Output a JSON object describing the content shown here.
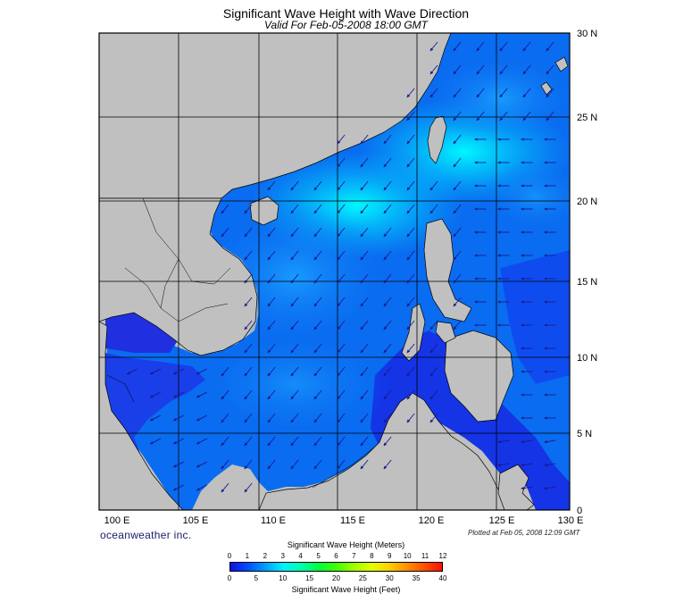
{
  "title": "Significant Wave Height with Wave Direction",
  "subtitle": "Valid For Feb-05-2008 18:00 GMT",
  "brand": "oceanweather inc.",
  "plotted_at": "Plotted at Feb 05, 2008 12:09 GMT",
  "map": {
    "lon_labels": [
      "100 E",
      "105 E",
      "110 E",
      "115 E",
      "120 E",
      "125 E",
      "130 E"
    ],
    "lat_labels": [
      "30 N",
      "25 N",
      "20 N",
      "15 N",
      "10 N",
      "5 N",
      "0"
    ],
    "lon_range": [
      100,
      130
    ],
    "lat_range": [
      0,
      30
    ],
    "land_color": "#c0c0c0",
    "arrow_color": "#1a1a8c"
  },
  "legend": {
    "title_meters": "Significant Wave Height (Meters)",
    "title_feet": "Significant Wave Height (Feet)",
    "meters_ticks": [
      "0",
      "1",
      "2",
      "3",
      "4",
      "5",
      "6",
      "7",
      "8",
      "9",
      "10",
      "11",
      "12"
    ],
    "feet_ticks": [
      "0",
      "5",
      "10",
      "15",
      "20",
      "25",
      "30",
      "35",
      "40"
    ],
    "colors": [
      "#1010e0",
      "#0050ff",
      "#00a0ff",
      "#00f0ff",
      "#00ffb0",
      "#00ff40",
      "#40ff00",
      "#a0ff00",
      "#e0ff00",
      "#ffd000",
      "#ff9000",
      "#ff5000",
      "#ff1000"
    ]
  }
}
